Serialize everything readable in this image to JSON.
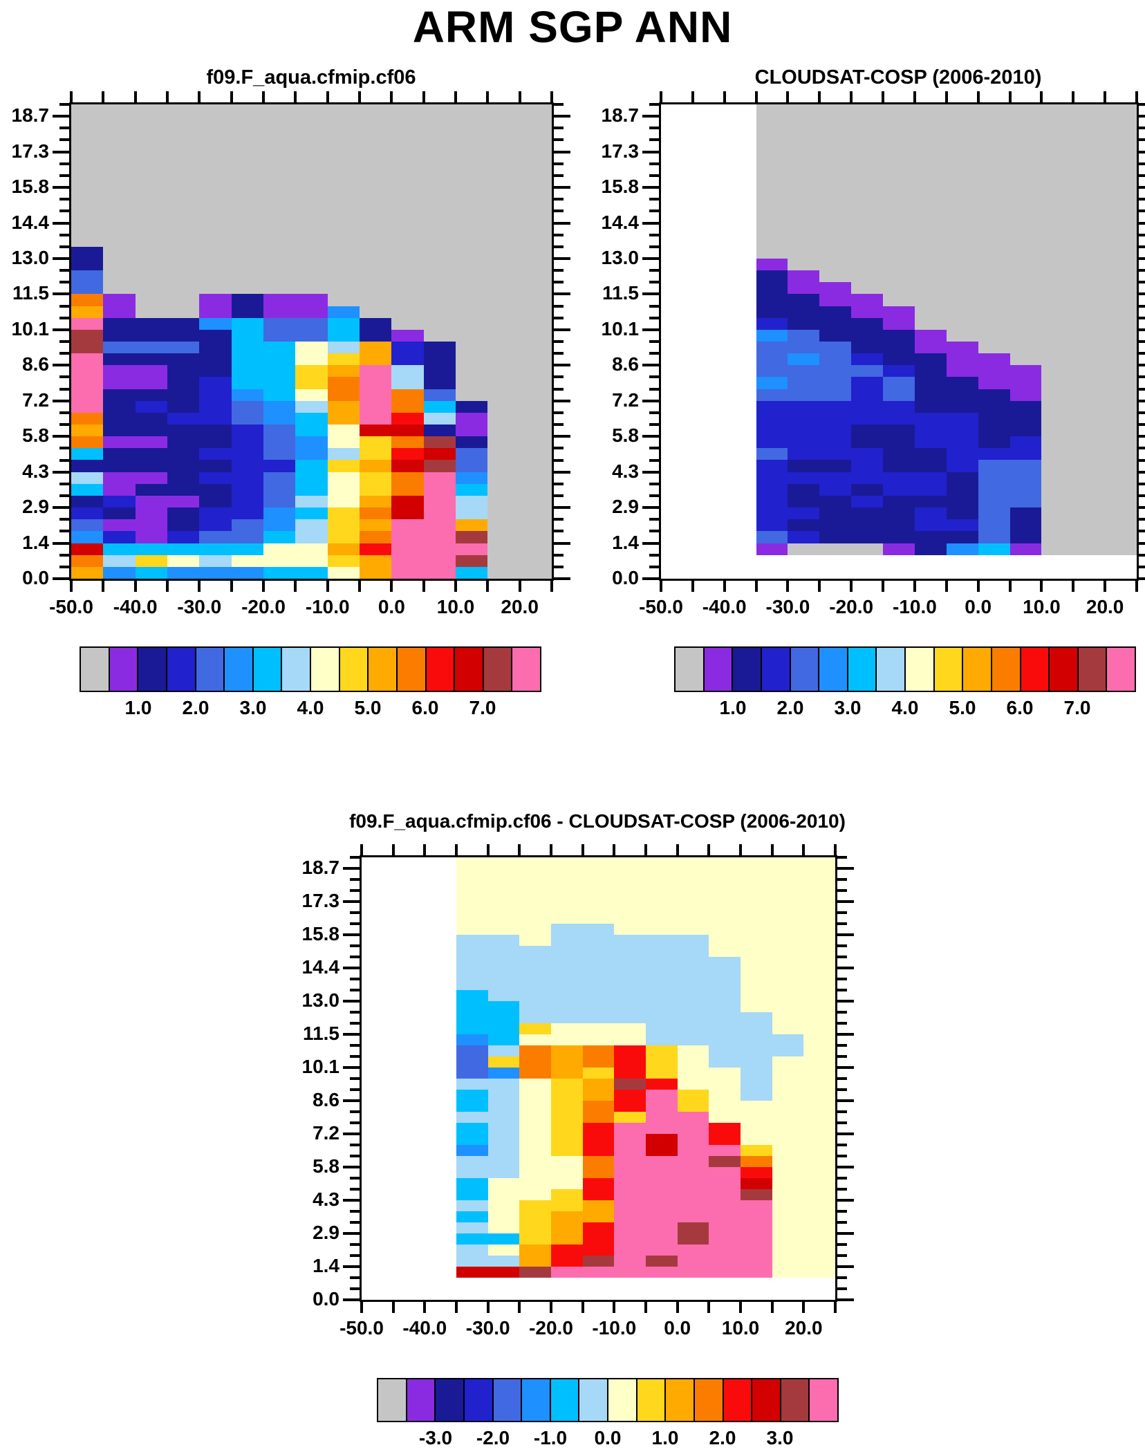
{
  "main_title": "ARM SGP ANN",
  "palette": {
    "0": "#c5c5c5",
    "1": "#8a2be2",
    "2": "#1a1a96",
    "3": "#2121cd",
    "4": "#4169e1",
    "5": "#1e90ff",
    "6": "#00bfff",
    "7": "#a6d8f7",
    "8": "#ffffc8",
    "9": "#ffd71c",
    "a": "#ffaa00",
    "b": "#fa7d00",
    "c": "#fa0b0b",
    "d": "#d20000",
    "e": "#a53a3e",
    "f": "#fb6dae",
    "w": "#ffffff"
  },
  "palette_order": "0123456789abcdef",
  "chart_data": {
    "type": "heatmap",
    "description": "Radar reflectivity CFAD frequency heatmaps: model, CloudSat observations, and model-minus-obs difference",
    "x_axis": {
      "min": -50,
      "max": 25,
      "n_cols": 15,
      "tick_step": 5,
      "labels": [
        "-50.0",
        "-40.0",
        "-30.0",
        "-20.0",
        "-10.0",
        "0.0",
        "10.0",
        "20.0"
      ]
    },
    "y_axis": {
      "min": 0,
      "max": 19.4,
      "n_rows": 40,
      "minor_ticks": 40,
      "labels_bottom_to_top": [
        "0.0",
        "1.4",
        "2.9",
        "4.3",
        "5.8",
        "7.2",
        "8.6",
        "10.1",
        "11.5",
        "13.0",
        "14.4",
        "15.8",
        "17.3",
        "18.7"
      ]
    },
    "panels": [
      {
        "name": "model",
        "box_id": "p1box",
        "title": "f09.F_aqua.cfmip.cf06",
        "grid_rows_top_to_bottom": [
          "000000000000000",
          "000000000000000",
          "000000000000000",
          "000000000000000",
          "000000000000000",
          "000000000000000",
          "000000000000000",
          "000000000000000",
          "000000000000000",
          "000000000000000",
          "000000000000000",
          "000000000000000",
          "200000000000000",
          "200000000000000",
          "400000000000000",
          "400000000000000",
          "b10012110000000",
          "a10012115000000",
          "f22256446200000",
          "e22226446210000",
          "e44426687a32000",
          "f22226689a32000",
          "f1122669af72000",
          "f1123669bf72000",
          "f2223568bfb4000",
          "f2323457afb6200",
          "b2233456afc7100",
          "a22223468dd2100",
          "b112234589be200",
          "6222334579cd400",
          "222223369ade400",
          "7112334689bf500",
          "6122234689bf600",
          "231123478adf700",
          "321233569bdf700",
          "411234579affa00",
          "531344679bffe00",
          "d6666688acfff00",
          "b79878889affe00",
          "a56555668aff600"
        ]
      },
      {
        "name": "observations",
        "box_id": "p2box",
        "title": "CLOUDSAT-COSP (2006-2010)",
        "grid_rows_top_to_bottom": [
          "www000000000000",
          "www000000000000",
          "www000000000000",
          "www000000000000",
          "www000000000000",
          "www000000000000",
          "www000000000000",
          "www000000000000",
          "www000000000000",
          "www000000000000",
          "www000000000000",
          "www000000000000",
          "www000000000000",
          "www100000000000",
          "www210000000000",
          "www211000000000",
          "www221100000000",
          "www222110000000",
          "www322210000000",
          "www542221000000",
          "www444221100000",
          "www454322110000",
          "www444432111000",
          "www544342211000",
          "www444342221000",
          "www333332222000",
          "www333333322000",
          "www333223322000",
          "www333223323000",
          "www433322333000",
          "www322322344000",
          "www333333244000",
          "www323233244000",
          "www322322244000",
          "www332223242000",
          "www322223342000",
          "www432222242000",
          "www100012561000",
          "wwwwwwwwwwwwwww",
          "wwwwwwwwwwwwwww"
        ]
      },
      {
        "name": "difference",
        "box_id": "p3box",
        "title": "f09.F_aqua.cfmip.cf06 - CLOUDSAT-COSP (2006-2010)",
        "grid_rows_top_to_bottom": [
          "www888888888888",
          "www888888888888",
          "www888888888888",
          "www888888888888",
          "www888888888888",
          "www888888888888",
          "www888778888888",
          "www778777778888",
          "www777777778888",
          "www777777777888",
          "www777777777888",
          "www777777777888",
          "www677777777888",
          "www667777777888",
          "www667777777788",
          "www669888777788",
          "www568888777778",
          "www47babc987778",
          "www49babc987788",
          "www45ba9c988788",
          "www7789aec88788",
          "www6789acf98788",
          "www6789bcf98888",
          "www7789b9ff8888",
          "www6789cfffc888",
          "www6789cfdfc888",
          "www5789cfdff988",
          "www7788bfffeb88",
          "www7788bffffc88",
          "www6888cffffd88",
          "www6889cffffe88",
          "www7899afffff88",
          "www689aafffff88",
          "www789acffeff88",
          "www669acffeff88",
          "www78accfffff88",
          "www77acefefff88",
          "wwwddefffffff88",
          "wwwwwwwwwwwwwww",
          "wwwwwwwwwwwwwww"
        ]
      }
    ],
    "colorbars": [
      {
        "bar_id": "cb1",
        "for_panel": "model",
        "labels": [
          "1.0",
          "2.0",
          "3.0",
          "4.0",
          "5.0",
          "6.0",
          "7.0"
        ]
      },
      {
        "bar_id": "cb2",
        "for_panel": "observations",
        "labels": [
          "1.0",
          "2.0",
          "3.0",
          "4.0",
          "5.0",
          "6.0",
          "7.0"
        ]
      },
      {
        "bar_id": "cb3",
        "for_panel": "difference",
        "labels": [
          "-3.0",
          "-2.0",
          "-1.0",
          "0.0",
          "1.0",
          "2.0",
          "3.0"
        ]
      }
    ]
  }
}
